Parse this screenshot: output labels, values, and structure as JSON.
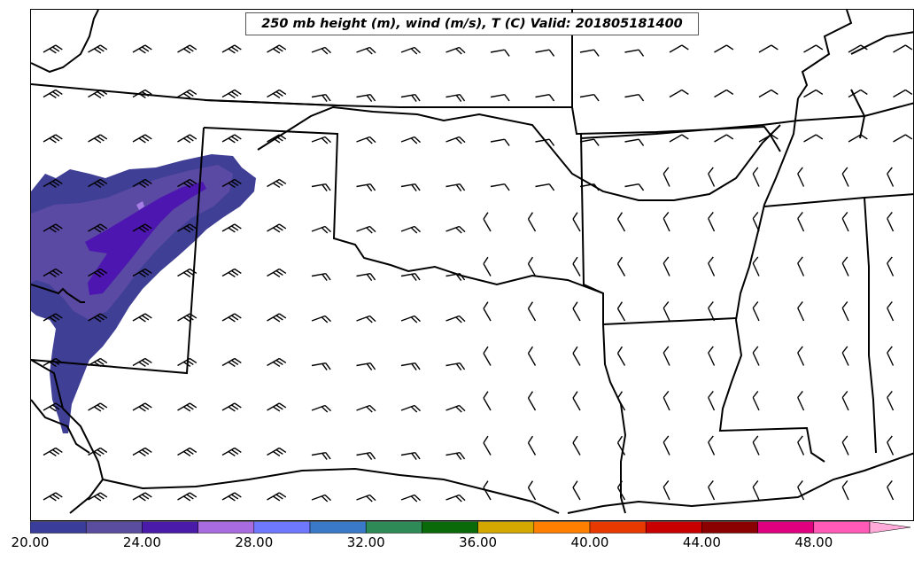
{
  "title": "250 mb height (m), wind (m/s), T (C) Valid: 201805181400",
  "colorbar": {
    "colors": [
      "#3a3d99",
      "#5a4d9f",
      "#4a1aa8",
      "#a86be0",
      "#6e78ff",
      "#3a78c8",
      "#2e8b57",
      "#0a6a0a",
      "#d4a800",
      "#ff7f00",
      "#e83a00",
      "#c80000",
      "#8b0000",
      "#e0007f",
      "#ff5ab8",
      "#ffaad8"
    ],
    "tick_labels": [
      "20.00",
      "24.00",
      "28.00",
      "32.00",
      "36.00",
      "40.00",
      "44.00",
      "48.00"
    ]
  },
  "shading": {
    "outer": "#3f3f96",
    "mid": "#5b4aa3",
    "inner": "#4d16b0",
    "core": "#a87de8"
  },
  "wind_barbs": {
    "color": "#000000"
  }
}
